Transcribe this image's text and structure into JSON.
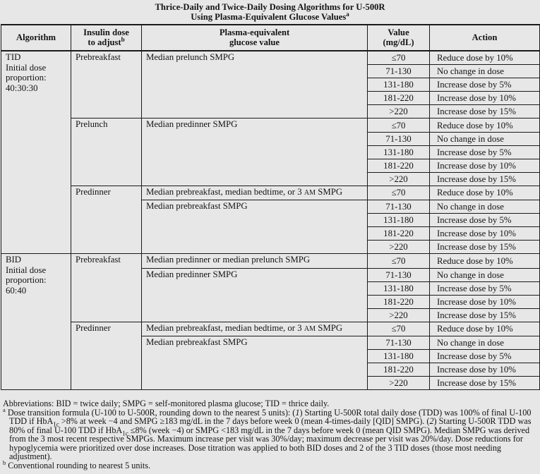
{
  "colors": {
    "background": "#e7e7e7",
    "border": "#1a1a1a",
    "text": "#141414"
  },
  "title": {
    "line1": "Thrice-Daily and Twice-Daily Dosing Algorithms for U-500R",
    "line2": "Using Plasma-Equivalent Glucose Values",
    "line2_sup": "a"
  },
  "table": {
    "headers": [
      {
        "lines": [
          "Algorithm"
        ]
      },
      {
        "lines": [
          "Insulin dose",
          "to adjust"
        ],
        "sup": "b"
      },
      {
        "lines": [
          "Plasma-equivalent",
          "glucose value"
        ]
      },
      {
        "lines": [
          "Value",
          "(mg/dL)"
        ]
      },
      {
        "lines": [
          "Action"
        ]
      }
    ],
    "blocks": [
      {
        "algorithm": "TID\nInitial dose\nproportion:\n40:30:30",
        "groups": [
          {
            "insulin_dose": "Prebreakfast",
            "plasma": [
              {
                "text": "Median prelunch SMPG",
                "rows": 5
              }
            ],
            "rows": [
              [
                "≤70",
                "Reduce dose by 10%"
              ],
              [
                "71-130",
                "No change in dose"
              ],
              [
                "131-180",
                "Increase dose by 5%"
              ],
              [
                "181-220",
                "Increase dose by 10%"
              ],
              [
                ">220",
                "Increase dose by 15%"
              ]
            ]
          },
          {
            "insulin_dose": "Prelunch",
            "plasma": [
              {
                "text": "Median predinner SMPG",
                "rows": 5
              }
            ],
            "rows": [
              [
                "≤70",
                "Reduce dose by 10%"
              ],
              [
                "71-130",
                "No change in dose"
              ],
              [
                "131-180",
                "Increase dose by 5%"
              ],
              [
                "181-220",
                "Increase dose by 10%"
              ],
              [
                ">220",
                "Increase dose by 15%"
              ]
            ]
          },
          {
            "insulin_dose": "Predinner",
            "plasma": [
              {
                "text": "Median prebreakfast, median bedtime, or 3 AM SMPG",
                "rows": 1
              },
              {
                "text": "Median prebreakfast SMPG",
                "rows": 4
              }
            ],
            "rows": [
              [
                "≤70",
                "Reduce dose by 10%"
              ],
              [
                "71-130",
                "No change in dose"
              ],
              [
                "131-180",
                "Increase dose by 5%"
              ],
              [
                "181-220",
                "Increase dose by 10%"
              ],
              [
                ">220",
                "Increase dose by 15%"
              ]
            ]
          }
        ]
      },
      {
        "algorithm": "BID\nInitial dose\nproportion:\n60:40",
        "groups": [
          {
            "insulin_dose": "Prebreakfast",
            "plasma": [
              {
                "text": "Median predinner or median prelunch SMPG",
                "rows": 1
              },
              {
                "text": "Median predinner SMPG",
                "rows": 4
              }
            ],
            "rows": [
              [
                "≤70",
                "Reduce dose by 10%"
              ],
              [
                "71-130",
                "No change in dose"
              ],
              [
                "131-180",
                "Increase dose by 5%"
              ],
              [
                "181-220",
                "Increase dose by 10%"
              ],
              [
                ">220",
                "Increase dose by 15%"
              ]
            ]
          },
          {
            "insulin_dose": "Predinner",
            "plasma": [
              {
                "text": "Median prebreakfast, median bedtime, or 3 AM SMPG",
                "rows": 1
              },
              {
                "text": "Median prebreakfast SMPG",
                "rows": 4
              }
            ],
            "rows": [
              [
                "≤70",
                "Reduce dose by 10%"
              ],
              [
                "71-130",
                "No change in dose"
              ],
              [
                "131-180",
                "Increase dose by 5%"
              ],
              [
                "181-220",
                "Increase dose by 10%"
              ],
              [
                ">220",
                "Increase dose by 15%"
              ]
            ]
          }
        ]
      }
    ]
  },
  "footnotes": {
    "abbreviations": "Abbreviations: BID = twice daily; SMPG = self-monitored plasma glucose; TID = thrice daily.",
    "notes": [
      {
        "sup": "a",
        "segments": [
          {
            "t": "Dose transition formula (U-100 to U-500R, rounding down to the nearest 5 units): ("
          },
          {
            "t": "1",
            "style": "italic"
          },
          {
            "t": ") Starting U-500R total daily dose (TDD) was 100% of final U-100 TDD if HbA"
          },
          {
            "t": "1c",
            "style": "sub"
          },
          {
            "t": " >8% at week −4 and SMPG ≥183 mg/dL in the 7 days before week 0 (mean 4-times-daily [QID] SMPG). ("
          },
          {
            "t": "2",
            "style": "italic"
          },
          {
            "t": ") Starting U-500R TDD was 80% of final U-100 TDD if HbA"
          },
          {
            "t": "1c",
            "style": "sub"
          },
          {
            "t": " ≤8% (week −4) or SMPG <183 mg/dL in the 7 days before week 0 (mean QID SMPG). Median SMPG was derived from the 3 most recent respective SMPGs. Maximum increase per visit was 30%/day; maximum decrease per visit was 20%/day. Dose reductions for hypoglycemia were prioritized over dose increases. Dose titration was applied to both BID doses and 2 of the 3 TID doses (those most needing adjustment)."
          }
        ]
      },
      {
        "sup": "b",
        "segments": [
          {
            "t": "Conventional rounding to nearest 5 units."
          }
        ]
      }
    ]
  }
}
